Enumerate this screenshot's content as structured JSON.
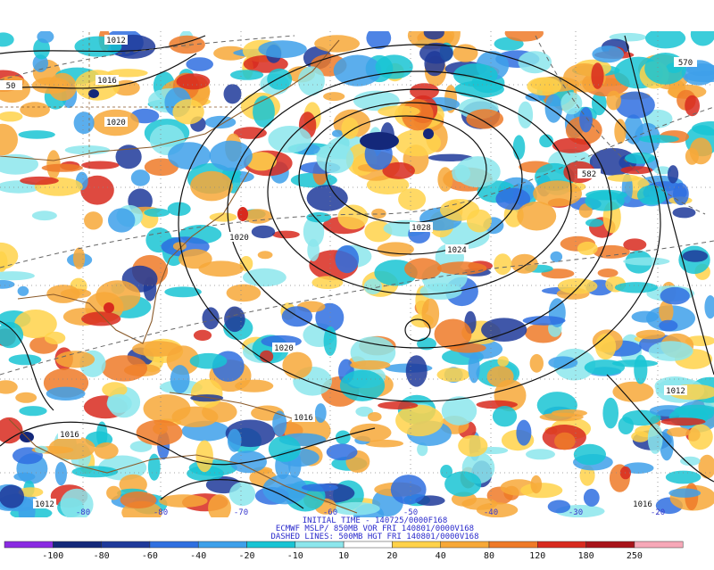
{
  "contour_labels": [
    "1012",
    "1016",
    "1020",
    "1020",
    "1028",
    "1024",
    "1020",
    "1016",
    "1012",
    "1016",
    "1012",
    "1016",
    "570",
    "582",
    "50"
  ],
  "longitude_labels": [
    "-80",
    "-80",
    "-70",
    "-60",
    "-50",
    "-40",
    "-30",
    "-20"
  ],
  "caption": [
    "INITIAL TIME - 140725/0000F168",
    "ECMWF MSLP/ 850MB VOR FRI 140801/0000V168",
    "DASHED LINES: 500MB HGT FRI 140801/0000V168"
  ],
  "colorbar": {
    "colors": [
      "#8a2be2",
      "#14287a",
      "#1f3a9a",
      "#2f6fe0",
      "#3ea0ea",
      "#19c4d4",
      "#8ce6ec",
      "#ffffff",
      "#ffd24a",
      "#f7a838",
      "#ef7a28",
      "#d82a1e",
      "#a8141a",
      "#f7a8b8"
    ],
    "labels": [
      "-100",
      "-80",
      "-60",
      "-40",
      "-20",
      "-10",
      "10",
      "20",
      "40",
      "80",
      "120",
      "180",
      "250"
    ]
  }
}
